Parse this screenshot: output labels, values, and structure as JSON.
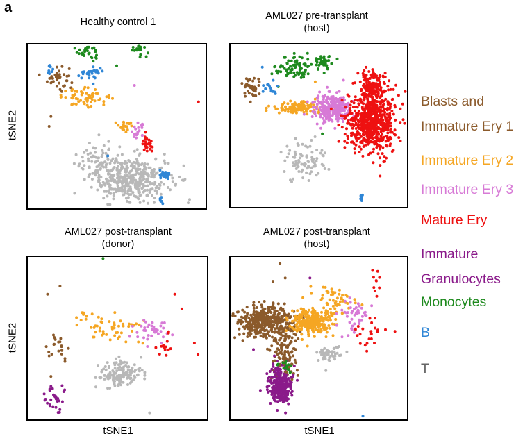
{
  "figure_label": "a",
  "colors": {
    "blasts": "#8b5a2b",
    "imm2": "#f5a623",
    "imm3": "#d77ad6",
    "mature": "#ee1111",
    "gran": "#8a1a8a",
    "mono": "#1e8a1e",
    "b": "#2f86d6",
    "t": "#b8b8b8"
  },
  "chart_data": [
    {
      "type": "scatter",
      "title": "Healthy control 1",
      "xlabel": "",
      "ylabel": "tSNE2",
      "clusters": [
        {
          "series": "mono",
          "x": 0.34,
          "y": 0.96,
          "sx": 0.03,
          "sy": 0.03,
          "n": 30
        },
        {
          "series": "mono",
          "x": 0.63,
          "y": 0.98,
          "sx": 0.025,
          "sy": 0.02,
          "n": 30
        },
        {
          "series": "blasts",
          "x": 0.17,
          "y": 0.8,
          "sx": 0.03,
          "sy": 0.04,
          "n": 40
        },
        {
          "series": "b",
          "x": 0.12,
          "y": 0.85,
          "sx": 0.015,
          "sy": 0.02,
          "n": 8
        },
        {
          "series": "b",
          "x": 0.35,
          "y": 0.82,
          "sx": 0.04,
          "sy": 0.02,
          "n": 30
        },
        {
          "series": "imm2",
          "x": 0.33,
          "y": 0.68,
          "sx": 0.07,
          "sy": 0.025,
          "n": 60
        },
        {
          "series": "imm2",
          "x": 0.55,
          "y": 0.5,
          "sx": 0.03,
          "sy": 0.015,
          "n": 20
        },
        {
          "series": "imm3",
          "x": 0.62,
          "y": 0.47,
          "sx": 0.02,
          "sy": 0.025,
          "n": 20
        },
        {
          "series": "mature",
          "x": 0.67,
          "y": 0.39,
          "sx": 0.015,
          "sy": 0.025,
          "n": 25
        },
        {
          "series": "t",
          "x": 0.58,
          "y": 0.18,
          "sx": 0.11,
          "sy": 0.07,
          "n": 420
        },
        {
          "series": "t",
          "x": 0.4,
          "y": 0.29,
          "sx": 0.06,
          "sy": 0.05,
          "n": 60
        },
        {
          "series": "b",
          "x": 0.77,
          "y": 0.2,
          "sx": 0.015,
          "sy": 0.015,
          "n": 30
        },
        {
          "series": "b",
          "x": 0.75,
          "y": 0.04,
          "sx": 0.006,
          "sy": 0.015,
          "n": 6
        }
      ],
      "outliers": [
        {
          "series": "blasts",
          "x": 0.13,
          "y": 0.56
        },
        {
          "series": "blasts",
          "x": 0.12,
          "y": 0.5
        },
        {
          "series": "mature",
          "x": 0.96,
          "y": 0.65
        },
        {
          "series": "imm3",
          "x": 0.6,
          "y": 0.75
        },
        {
          "series": "mono",
          "x": 0.5,
          "y": 0.87
        },
        {
          "series": "b",
          "x": 0.45,
          "y": 0.32
        }
      ]
    },
    {
      "type": "scatter",
      "title": "AML027 pre-transplant\n(host)",
      "xlabel": "",
      "ylabel": "",
      "clusters": [
        {
          "series": "mono",
          "x": 0.36,
          "y": 0.86,
          "sx": 0.05,
          "sy": 0.04,
          "n": 80
        },
        {
          "series": "mono",
          "x": 0.52,
          "y": 0.89,
          "sx": 0.03,
          "sy": 0.025,
          "n": 40
        },
        {
          "series": "blasts",
          "x": 0.12,
          "y": 0.73,
          "sx": 0.025,
          "sy": 0.04,
          "n": 40
        },
        {
          "series": "b",
          "x": 0.22,
          "y": 0.73,
          "sx": 0.02,
          "sy": 0.02,
          "n": 15
        },
        {
          "series": "imm2",
          "x": 0.38,
          "y": 0.61,
          "sx": 0.08,
          "sy": 0.02,
          "n": 110
        },
        {
          "series": "imm3",
          "x": 0.57,
          "y": 0.61,
          "sx": 0.05,
          "sy": 0.04,
          "n": 260
        },
        {
          "series": "mature",
          "x": 0.8,
          "y": 0.52,
          "sx": 0.07,
          "sy": 0.09,
          "n": 700
        },
        {
          "series": "mature",
          "x": 0.8,
          "y": 0.75,
          "sx": 0.035,
          "sy": 0.05,
          "n": 150
        },
        {
          "series": "t",
          "x": 0.42,
          "y": 0.28,
          "sx": 0.06,
          "sy": 0.06,
          "n": 90
        },
        {
          "series": "b",
          "x": 0.74,
          "y": 0.06,
          "sx": 0.006,
          "sy": 0.012,
          "n": 8
        }
      ],
      "outliers": [
        {
          "series": "imm2",
          "x": 0.48,
          "y": 0.77
        },
        {
          "series": "mono",
          "x": 0.52,
          "y": 0.45
        },
        {
          "series": "b",
          "x": 0.18,
          "y": 0.86
        },
        {
          "series": "imm3",
          "x": 0.64,
          "y": 0.78
        }
      ]
    },
    {
      "type": "scatter",
      "title": "AML027 post-transplant\n(donor)",
      "xlabel": "tSNE1",
      "ylabel": "tSNE2",
      "clusters": [
        {
          "series": "t",
          "x": 0.52,
          "y": 0.28,
          "sx": 0.06,
          "sy": 0.04,
          "n": 160
        },
        {
          "series": "imm2",
          "x": 0.45,
          "y": 0.56,
          "sx": 0.1,
          "sy": 0.05,
          "n": 55
        },
        {
          "series": "imm3",
          "x": 0.7,
          "y": 0.54,
          "sx": 0.05,
          "sy": 0.04,
          "n": 40
        },
        {
          "series": "mature",
          "x": 0.76,
          "y": 0.46,
          "sx": 0.03,
          "sy": 0.04,
          "n": 14
        },
        {
          "series": "blasts",
          "x": 0.17,
          "y": 0.43,
          "sx": 0.04,
          "sy": 0.05,
          "n": 22
        },
        {
          "series": "gran",
          "x": 0.15,
          "y": 0.14,
          "sx": 0.025,
          "sy": 0.06,
          "n": 30
        }
      ],
      "outliers": [
        {
          "series": "blasts",
          "x": 0.18,
          "y": 0.82
        },
        {
          "series": "blasts",
          "x": 0.11,
          "y": 0.77
        },
        {
          "series": "mature",
          "x": 0.82,
          "y": 0.77
        },
        {
          "series": "mature",
          "x": 0.86,
          "y": 0.68
        },
        {
          "series": "mature",
          "x": 0.95,
          "y": 0.4
        },
        {
          "series": "mature",
          "x": 0.93,
          "y": 0.47
        },
        {
          "series": "t",
          "x": 0.68,
          "y": 0.04
        },
        {
          "series": "t",
          "x": 0.38,
          "y": 0.2
        },
        {
          "series": "mono",
          "x": 0.42,
          "y": 0.99
        }
      ]
    },
    {
      "type": "scatter",
      "title": "AML027 post-transplant\n(host)",
      "xlabel": "tSNE1",
      "ylabel": "",
      "clusters": [
        {
          "series": "blasts",
          "x": 0.2,
          "y": 0.6,
          "sx": 0.08,
          "sy": 0.05,
          "n": 420
        },
        {
          "series": "blasts",
          "x": 0.3,
          "y": 0.4,
          "sx": 0.035,
          "sy": 0.08,
          "n": 120
        },
        {
          "series": "gran",
          "x": 0.28,
          "y": 0.2,
          "sx": 0.035,
          "sy": 0.06,
          "n": 280
        },
        {
          "series": "imm2",
          "x": 0.45,
          "y": 0.6,
          "sx": 0.06,
          "sy": 0.04,
          "n": 260
        },
        {
          "series": "imm2",
          "x": 0.58,
          "y": 0.72,
          "sx": 0.06,
          "sy": 0.05,
          "n": 60
        },
        {
          "series": "imm3",
          "x": 0.71,
          "y": 0.64,
          "sx": 0.05,
          "sy": 0.06,
          "n": 45
        },
        {
          "series": "mature",
          "x": 0.8,
          "y": 0.53,
          "sx": 0.05,
          "sy": 0.06,
          "n": 22
        },
        {
          "series": "mature",
          "x": 0.82,
          "y": 0.83,
          "sx": 0.015,
          "sy": 0.05,
          "n": 10
        },
        {
          "series": "t",
          "x": 0.56,
          "y": 0.4,
          "sx": 0.04,
          "sy": 0.02,
          "n": 50
        },
        {
          "series": "mono",
          "x": 0.31,
          "y": 0.32,
          "sx": 0.02,
          "sy": 0.02,
          "n": 15
        }
      ],
      "outliers": [
        {
          "series": "blasts",
          "x": 0.28,
          "y": 0.96
        },
        {
          "series": "blasts",
          "x": 0.31,
          "y": 0.87
        },
        {
          "series": "blasts",
          "x": 0.24,
          "y": 0.85
        },
        {
          "series": "gran",
          "x": 0.45,
          "y": 0.87
        },
        {
          "series": "gran",
          "x": 0.13,
          "y": 0.43
        },
        {
          "series": "b",
          "x": 0.75,
          "y": 0.02
        },
        {
          "series": "t",
          "x": 0.54,
          "y": 0.3
        }
      ]
    }
  ],
  "legend": [
    {
      "key": "blasts",
      "lines": [
        "Blasts and",
        "Immature Ery 1"
      ]
    },
    {
      "key": "imm2",
      "lines": [
        "Immature Ery 2"
      ]
    },
    {
      "key": "imm3",
      "lines": [
        "Immature Ery 3"
      ]
    },
    {
      "key": "mature",
      "lines": [
        "Mature Ery"
      ]
    },
    {
      "key": "gran",
      "lines": [
        "Immature",
        "Granulocytes"
      ]
    },
    {
      "key": "mono",
      "lines": [
        "Monocytes"
      ]
    },
    {
      "key": "b",
      "lines": [
        "B"
      ]
    },
    {
      "key": "t",
      "lines": [
        "T"
      ]
    }
  ]
}
